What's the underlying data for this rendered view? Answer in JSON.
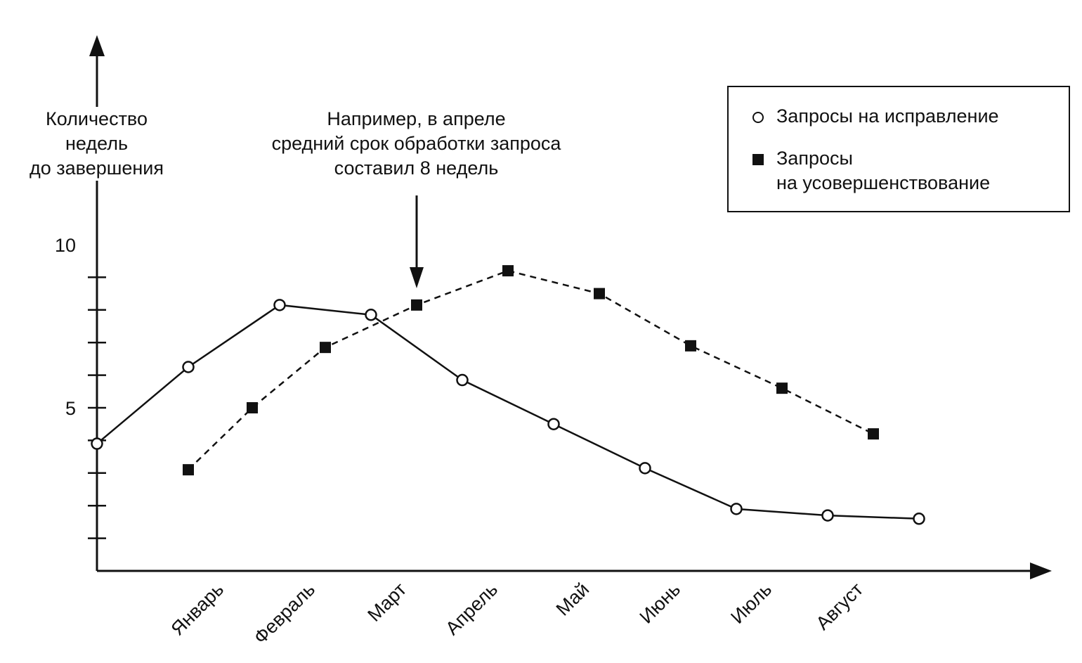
{
  "chart_data": {
    "type": "line",
    "categories": [
      "Январь",
      "Февраль",
      "Март",
      "Апрель",
      "Май",
      "Июнь",
      "Июль",
      "Август"
    ],
    "ylabel": "Количество\nнедель\nдо завершения",
    "xlabel": "",
    "y_ticks": [
      1,
      2,
      3,
      4,
      5,
      6,
      7,
      8,
      9,
      10
    ],
    "y_tick_labels": [
      {
        "value": 5,
        "label": "5"
      },
      {
        "value": 10,
        "label": "10"
      }
    ],
    "ylim": [
      0,
      10
    ],
    "grid": false,
    "legend_position": "top-right",
    "series": [
      {
        "name": "Запросы на исправление",
        "marker": "open-circle",
        "line_style": "solid",
        "color": "#111111",
        "points": [
          {
            "x": 0,
            "y": 3.9
          },
          {
            "x": 1,
            "y": 6.25
          },
          {
            "x": 2,
            "y": 8.15
          },
          {
            "x": 3,
            "y": 7.85
          },
          {
            "x": 4,
            "y": 5.85
          },
          {
            "x": 5,
            "y": 4.5
          },
          {
            "x": 6,
            "y": 3.15
          },
          {
            "x": 7,
            "y": 1.9
          },
          {
            "x": 8,
            "y": 1.7
          },
          {
            "x": 9,
            "y": 1.6
          }
        ]
      },
      {
        "name": "Запросы на усовершенствование",
        "marker": "filled-square",
        "line_style": "dashed",
        "color": "#111111",
        "points": [
          {
            "x": 1,
            "y": 3.1
          },
          {
            "x": 1.7,
            "y": 5.0
          },
          {
            "x": 2.5,
            "y": 6.85
          },
          {
            "x": 3.5,
            "y": 8.15
          },
          {
            "x": 4.5,
            "y": 9.2
          },
          {
            "x": 5.5,
            "y": 8.5
          },
          {
            "x": 6.5,
            "y": 6.9
          },
          {
            "x": 7.5,
            "y": 5.6
          },
          {
            "x": 8.5,
            "y": 4.2
          }
        ]
      }
    ],
    "annotation": {
      "text": "Например, в апреле\nсредний срок обработки запроса\nсоставил 8 недель",
      "target_x": 3.5,
      "target_y": 8.15
    },
    "legend": [
      {
        "text": "Запросы на исправление",
        "marker": "open-circle"
      },
      {
        "text": "Запросы\nна усовершенствование",
        "marker": "filled-square"
      }
    ]
  }
}
